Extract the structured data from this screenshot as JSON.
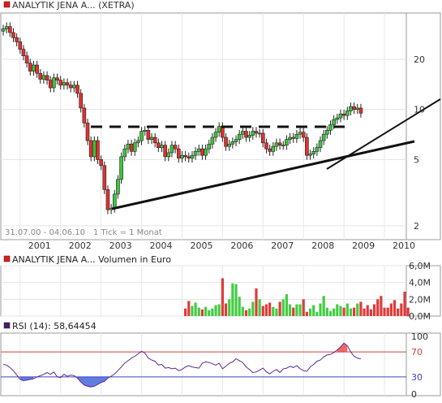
{
  "chart_data": [
    {
      "type": "candlestick",
      "title": "ANALYTIK JENA A... (XETRA)",
      "date_range_label": "31.07.00 - 04.06.10",
      "interval_label": "1 Tick = 1 Monat",
      "y_scale": "log",
      "y_ticks": [
        "2",
        "5",
        "10",
        "20"
      ],
      "y_tick_values": [
        2,
        5,
        10,
        20
      ],
      "ylim": [
        1.65,
        38
      ],
      "x_ticks": [
        "2001",
        "2002",
        "2003",
        "2004",
        "2005",
        "2006",
        "2007",
        "2008",
        "2009",
        "2010"
      ],
      "x_tick_months": [
        5,
        17,
        29,
        41,
        53,
        65,
        77,
        89,
        101,
        113
      ],
      "x_range_months": [
        0,
        119
      ],
      "closes": [
        30.5,
        31.5,
        29,
        27,
        25.5,
        23,
        21,
        19,
        17,
        18.5,
        16.5,
        15.2,
        16,
        15,
        13.5,
        15.5,
        15,
        14,
        14.5,
        14,
        13.5,
        14,
        12.5,
        10.2,
        8.3,
        6.5,
        5.2,
        6.5,
        5,
        4.6,
        3.3,
        2.5,
        2.55,
        3.1,
        3.8,
        5.2,
        5.8,
        6.2,
        5.6,
        6.3,
        6.5,
        7.4,
        7.5,
        6.6,
        6.8,
        6.3,
        5.9,
        6.1,
        5.2,
        5.5,
        6.1,
        5.8,
        5.1,
        5.3,
        5.2,
        5.1,
        5.3,
        5.6,
        5.8,
        5.3,
        5.8,
        6.2,
        6.8,
        7.3,
        7.9,
        6.8,
        6.0,
        6.2,
        6.4,
        6.6,
        7.1,
        7.4,
        6.8,
        7.0,
        7.4,
        7.2,
        7.2,
        6.3,
        5.8,
        5.6,
        6.0,
        6.3,
        6.1,
        6.1,
        6.6,
        6.8,
        6.7,
        7.1,
        7.3,
        6.8,
        5.3,
        5.4,
        5.6,
        5.9,
        6.5,
        7.1,
        7.5,
        8.1,
        8.7,
        8.9,
        9.4,
        9.2,
        9.8,
        10.4,
        10.0,
        10.2,
        9.5
      ]
    },
    {
      "type": "bar",
      "title": "ANALYTIK JENA A... Volumen in Euro",
      "y_ticks": [
        "0,0M",
        "2,0M",
        "4,0M",
        "6,0M"
      ],
      "y_tick_values": [
        0,
        2,
        4,
        6
      ],
      "ylim": [
        0,
        6
      ],
      "unit": "M",
      "first_month": 54,
      "values": [
        0.9,
        1.8,
        1.2,
        1.6,
        1.0,
        0.8,
        1.1,
        0.7,
        0.9,
        1.3,
        1.4,
        4.5,
        1.5,
        2.0,
        3.9,
        3.8,
        2.3,
        1.1,
        0.7,
        0.9,
        1.7,
        3.3,
        2.0,
        1.2,
        1.4,
        1.6,
        1.1,
        0.9,
        1.7,
        2.0,
        2.6,
        1.4,
        1.0,
        1.4,
        1.4,
        2.0,
        0.5,
        0.9,
        1.3,
        0.5,
        1.5,
        2.4,
        1.0,
        0.6,
        0.9,
        1.4,
        1.2,
        1.0,
        1.5,
        0.9,
        1.0,
        1.5,
        1.7,
        0.9,
        1.3,
        0.8,
        1.4,
        2.0,
        2.4,
        1.0,
        1.0,
        1.5,
        1.9,
        0.9,
        1.5,
        2.9,
        1.0
      ]
    },
    {
      "type": "line",
      "title": "RSI (14): 58,64454",
      "y_ticks": [
        "0",
        "30",
        "70",
        "100"
      ],
      "y_tick_values": [
        0,
        30,
        70,
        100
      ],
      "ylim": [
        0,
        100
      ],
      "upper_band": 70,
      "lower_band": 30,
      "values": [
        50,
        49,
        45,
        40,
        33,
        26,
        24,
        25,
        26,
        27,
        30,
        32,
        34,
        37,
        34,
        38,
        30,
        29,
        34,
        31,
        33,
        32,
        28,
        22,
        17,
        15,
        14,
        15,
        18,
        21,
        23,
        28,
        31,
        35,
        40,
        46,
        52,
        56,
        60,
        63,
        67,
        71,
        68,
        60,
        57,
        55,
        49,
        50,
        44,
        45,
        43,
        44,
        40,
        42,
        46,
        48,
        46,
        45,
        44,
        52,
        54,
        53,
        51,
        49,
        52,
        43,
        47,
        52,
        54,
        59,
        56,
        53,
        46,
        42,
        37,
        38,
        41,
        44,
        38,
        35,
        39,
        42,
        37,
        43,
        44,
        47,
        45,
        48,
        43,
        40,
        39,
        46,
        50,
        55,
        57,
        62,
        65,
        66,
        69,
        73,
        78,
        84,
        80,
        70,
        63,
        60,
        59
      ]
    }
  ]
}
